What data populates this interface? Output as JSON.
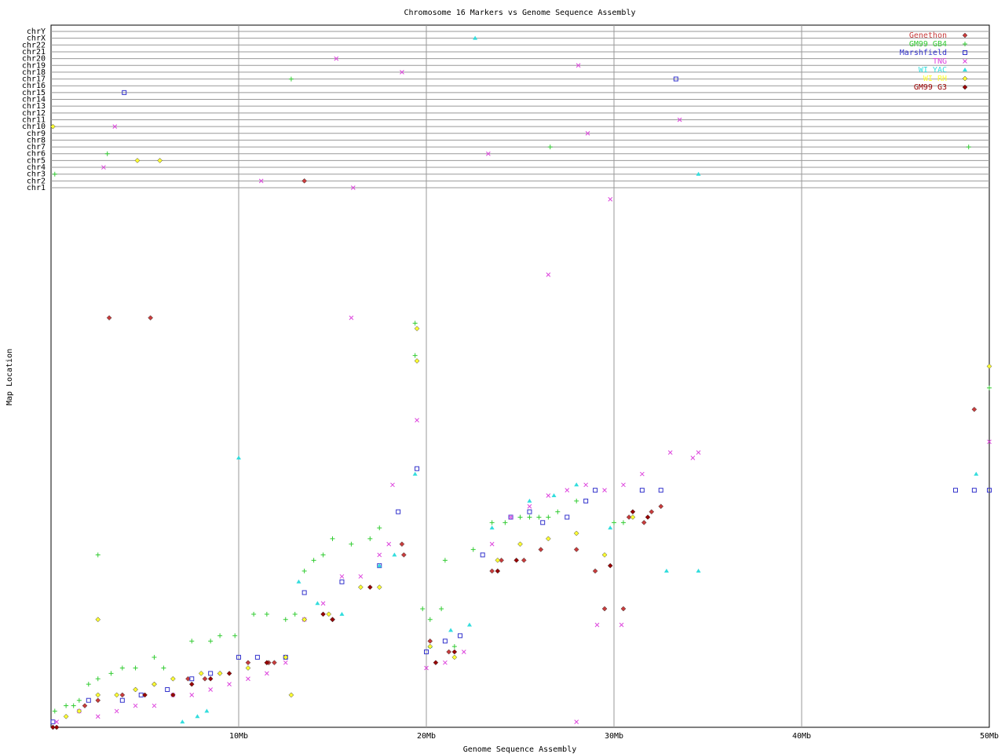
{
  "chart_data": {
    "type": "scatter",
    "title": "Chromosome 16 Markers vs Genome Sequence Assembly",
    "xlabel": "Genome Sequence Assembly",
    "ylabel": "Map Location",
    "xlim": [
      0,
      50
    ],
    "x_unit": "Mb",
    "x_ticks": [
      {
        "value": 10,
        "label": "10Mb"
      },
      {
        "value": 20,
        "label": "20Mb"
      },
      {
        "value": 30,
        "label": "30Mb"
      },
      {
        "value": 40,
        "label": "40Mb"
      },
      {
        "value": 50,
        "label": "50Mb"
      }
    ],
    "other_chromosomes": [
      "chr1",
      "chr2",
      "chr3",
      "chr4",
      "chr5",
      "chr6",
      "chr7",
      "chr8",
      "chr9",
      "chr10",
      "chr11",
      "chr12",
      "chr13",
      "chr14",
      "chr15",
      "chr16",
      "chr17",
      "chr18",
      "chr19",
      "chr20",
      "chr21",
      "chr22",
      "chrX",
      "chrY"
    ],
    "ylim_chr16_map_fraction": [
      0,
      1
    ],
    "legend_position": "top-right",
    "grid": true,
    "series": [
      {
        "name": "Genethon",
        "symbol": "diamond",
        "color": "#c83c3c",
        "points": [
          [
            3.1,
            0.76
          ],
          [
            5.3,
            0.76
          ],
          [
            1.8,
            0.04
          ],
          [
            2.5,
            0.05
          ],
          [
            3.8,
            0.06
          ],
          [
            4.5,
            0.07
          ],
          [
            5.5,
            0.08
          ],
          [
            7.3,
            0.09
          ],
          [
            8.2,
            0.09
          ],
          [
            9.0,
            0.1
          ],
          [
            10.5,
            0.12
          ],
          [
            11.6,
            0.12
          ],
          [
            11.9,
            0.12
          ],
          [
            13.5,
            0.2
          ],
          [
            15.0,
            0.2
          ],
          [
            18.7,
            0.34
          ],
          [
            18.8,
            0.32
          ],
          [
            20.2,
            0.16
          ],
          [
            21.2,
            0.14
          ],
          [
            23.5,
            0.29
          ],
          [
            24.0,
            0.31
          ],
          [
            25.2,
            0.31
          ],
          [
            26.1,
            0.33
          ],
          [
            28.0,
            0.33
          ],
          [
            29.0,
            0.29
          ],
          [
            30.8,
            0.39
          ],
          [
            31.6,
            0.38
          ],
          [
            32.0,
            0.4
          ],
          [
            32.5,
            0.41
          ],
          [
            29.5,
            0.22
          ],
          [
            30.5,
            0.22
          ],
          [
            49.2,
            0.59
          ]
        ],
        "other_chr_points": [
          [
            "chr2",
            13.5
          ]
        ]
      },
      {
        "name": "GM99 GB4",
        "symbol": "plus",
        "color": "#33cc33",
        "points": [
          [
            0.2,
            0.03
          ],
          [
            0.8,
            0.04
          ],
          [
            1.2,
            0.04
          ],
          [
            1.5,
            0.05
          ],
          [
            2.0,
            0.08
          ],
          [
            2.5,
            0.09
          ],
          [
            3.2,
            0.1
          ],
          [
            3.8,
            0.11
          ],
          [
            4.5,
            0.11
          ],
          [
            5.5,
            0.13
          ],
          [
            6.0,
            0.11
          ],
          [
            7.5,
            0.16
          ],
          [
            8.5,
            0.16
          ],
          [
            9.0,
            0.17
          ],
          [
            9.8,
            0.17
          ],
          [
            10.8,
            0.21
          ],
          [
            11.5,
            0.21
          ],
          [
            12.5,
            0.2
          ],
          [
            13.0,
            0.21
          ],
          [
            13.5,
            0.29
          ],
          [
            14.0,
            0.31
          ],
          [
            14.5,
            0.32
          ],
          [
            15.0,
            0.35
          ],
          [
            16.0,
            0.34
          ],
          [
            17.0,
            0.35
          ],
          [
            17.5,
            0.37
          ],
          [
            2.5,
            0.32
          ],
          [
            19.4,
            0.75
          ],
          [
            19.4,
            0.69
          ],
          [
            19.8,
            0.22
          ],
          [
            20.2,
            0.2
          ],
          [
            20.8,
            0.22
          ],
          [
            21.5,
            0.15
          ],
          [
            21.0,
            0.31
          ],
          [
            22.5,
            0.33
          ],
          [
            23.5,
            0.38
          ],
          [
            24.2,
            0.38
          ],
          [
            25.0,
            0.39
          ],
          [
            25.5,
            0.39
          ],
          [
            26.0,
            0.39
          ],
          [
            26.5,
            0.39
          ],
          [
            27.0,
            0.4
          ],
          [
            28.0,
            0.42
          ],
          [
            30.0,
            0.38
          ],
          [
            30.5,
            0.38
          ],
          [
            50.0,
            0.63
          ]
        ],
        "other_chr_points": [
          [
            "chr3",
            0.2
          ],
          [
            "chr6",
            3.0
          ],
          [
            "chr17",
            12.8
          ],
          [
            "chr7",
            26.6
          ],
          [
            "chr7",
            48.9
          ]
        ]
      },
      {
        "name": "Marshfield",
        "symbol": "square",
        "color": "#3333cc",
        "points": [
          [
            0.1,
            0.01
          ],
          [
            2.0,
            0.05
          ],
          [
            3.8,
            0.05
          ],
          [
            4.8,
            0.06
          ],
          [
            6.2,
            0.07
          ],
          [
            7.5,
            0.09
          ],
          [
            8.5,
            0.1
          ],
          [
            10.0,
            0.13
          ],
          [
            11.0,
            0.13
          ],
          [
            12.5,
            0.13
          ],
          [
            13.5,
            0.25
          ],
          [
            15.5,
            0.27
          ],
          [
            17.5,
            0.3
          ],
          [
            18.5,
            0.4
          ],
          [
            19.5,
            0.48
          ],
          [
            20.0,
            0.14
          ],
          [
            21.0,
            0.16
          ],
          [
            21.8,
            0.17
          ],
          [
            23.0,
            0.32
          ],
          [
            24.5,
            0.39
          ],
          [
            25.5,
            0.4
          ],
          [
            26.2,
            0.38
          ],
          [
            27.5,
            0.39
          ],
          [
            28.5,
            0.42
          ],
          [
            29.0,
            0.44
          ],
          [
            31.5,
            0.44
          ],
          [
            32.5,
            0.44
          ],
          [
            48.2,
            0.44
          ],
          [
            49.2,
            0.44
          ],
          [
            50.0,
            0.44
          ]
        ],
        "other_chr_points": [
          [
            "chr15",
            3.9
          ],
          [
            "chr17",
            33.3
          ]
        ]
      },
      {
        "name": "TNG",
        "symbol": "x",
        "color": "#dd44dd",
        "points": [
          [
            0.3,
            0.01
          ],
          [
            1.5,
            0.03
          ],
          [
            2.5,
            0.02
          ],
          [
            3.5,
            0.03
          ],
          [
            4.5,
            0.04
          ],
          [
            5.5,
            0.04
          ],
          [
            6.5,
            0.06
          ],
          [
            7.5,
            0.06
          ],
          [
            8.5,
            0.07
          ],
          [
            9.5,
            0.08
          ],
          [
            10.5,
            0.09
          ],
          [
            11.5,
            0.1
          ],
          [
            12.5,
            0.12
          ],
          [
            13.5,
            0.2
          ],
          [
            14.5,
            0.23
          ],
          [
            15.5,
            0.28
          ],
          [
            16.5,
            0.28
          ],
          [
            17.5,
            0.32
          ],
          [
            18.0,
            0.34
          ],
          [
            16.0,
            0.76
          ],
          [
            18.2,
            0.45
          ],
          [
            19.5,
            0.57
          ],
          [
            20.0,
            0.11
          ],
          [
            21.0,
            0.12
          ],
          [
            22.0,
            0.14
          ],
          [
            23.5,
            0.34
          ],
          [
            24.5,
            0.39
          ],
          [
            25.5,
            0.41
          ],
          [
            26.5,
            0.43
          ],
          [
            27.5,
            0.44
          ],
          [
            28.5,
            0.45
          ],
          [
            29.5,
            0.44
          ],
          [
            30.5,
            0.45
          ],
          [
            31.5,
            0.47
          ],
          [
            33.0,
            0.51
          ],
          [
            34.2,
            0.5
          ],
          [
            34.5,
            0.51
          ],
          [
            29.8,
            0.98
          ],
          [
            26.5,
            0.84
          ],
          [
            29.1,
            0.19
          ],
          [
            30.4,
            0.19
          ],
          [
            28.0,
            0.01
          ],
          [
            50.0,
            0.53
          ]
        ],
        "other_chr_points": [
          [
            "chr20",
            15.2
          ],
          [
            "chr18",
            18.7
          ],
          [
            "chr19",
            28.1
          ],
          [
            "chr10",
            3.4
          ],
          [
            "chr11",
            33.5
          ],
          [
            "chr9",
            28.6
          ],
          [
            "chr6",
            23.3
          ],
          [
            "chr4",
            2.8
          ],
          [
            "chr2",
            11.2
          ],
          [
            "chr1",
            16.1
          ]
        ]
      },
      {
        "name": "WI YAC",
        "symbol": "triangle",
        "color": "#33dddd",
        "points": [
          [
            7.0,
            0.01
          ],
          [
            7.8,
            0.02
          ],
          [
            8.3,
            0.03
          ],
          [
            10.0,
            0.5
          ],
          [
            13.2,
            0.27
          ],
          [
            14.2,
            0.23
          ],
          [
            15.5,
            0.21
          ],
          [
            17.5,
            0.3
          ],
          [
            18.3,
            0.32
          ],
          [
            19.4,
            0.47
          ],
          [
            20.2,
            0.15
          ],
          [
            21.3,
            0.18
          ],
          [
            22.3,
            0.19
          ],
          [
            23.5,
            0.37
          ],
          [
            25.5,
            0.42
          ],
          [
            26.8,
            0.43
          ],
          [
            28.0,
            0.45
          ],
          [
            29.8,
            0.37
          ],
          [
            32.8,
            0.29
          ],
          [
            34.5,
            0.29
          ],
          [
            49.3,
            0.47
          ]
        ],
        "other_chr_points": [
          [
            "chrX",
            22.6
          ],
          [
            "chr3",
            34.5
          ]
        ]
      },
      {
        "name": "WI RH",
        "symbol": "diamond",
        "color": "#ffff33",
        "points": [
          [
            0.8,
            0.02
          ],
          [
            1.5,
            0.03
          ],
          [
            2.5,
            0.06
          ],
          [
            3.5,
            0.06
          ],
          [
            4.5,
            0.07
          ],
          [
            5.5,
            0.08
          ],
          [
            6.5,
            0.09
          ],
          [
            8.0,
            0.1
          ],
          [
            9.0,
            0.1
          ],
          [
            10.5,
            0.11
          ],
          [
            11.5,
            0.12
          ],
          [
            12.5,
            0.13
          ],
          [
            13.5,
            0.2
          ],
          [
            14.8,
            0.21
          ],
          [
            16.5,
            0.26
          ],
          [
            17.5,
            0.26
          ],
          [
            2.5,
            0.2
          ],
          [
            12.8,
            0.06
          ],
          [
            19.5,
            0.74
          ],
          [
            19.5,
            0.68
          ],
          [
            20.2,
            0.15
          ],
          [
            21.5,
            0.13
          ],
          [
            23.8,
            0.31
          ],
          [
            25.0,
            0.34
          ],
          [
            26.5,
            0.35
          ],
          [
            28.0,
            0.36
          ],
          [
            29.5,
            0.32
          ],
          [
            31.0,
            0.39
          ],
          [
            50.0,
            0.67
          ]
        ],
        "other_chr_points": [
          [
            "chr10",
            0.1
          ],
          [
            "chr5",
            4.6
          ],
          [
            "chr5",
            5.8
          ]
        ]
      },
      {
        "name": "GM99 G3",
        "symbol": "diamond",
        "color": "#990000",
        "points": [
          [
            0.1,
            0.0
          ],
          [
            0.3,
            0.0
          ],
          [
            5.0,
            0.06
          ],
          [
            6.5,
            0.06
          ],
          [
            7.5,
            0.08
          ],
          [
            8.5,
            0.09
          ],
          [
            9.5,
            0.1
          ],
          [
            11.5,
            0.12
          ],
          [
            14.5,
            0.21
          ],
          [
            15.0,
            0.2
          ],
          [
            17.0,
            0.26
          ],
          [
            20.5,
            0.12
          ],
          [
            21.5,
            0.14
          ],
          [
            23.8,
            0.29
          ],
          [
            24.8,
            0.31
          ],
          [
            29.8,
            0.3
          ],
          [
            31.0,
            0.4
          ],
          [
            31.8,
            0.39
          ]
        ],
        "other_chr_points": []
      }
    ]
  }
}
